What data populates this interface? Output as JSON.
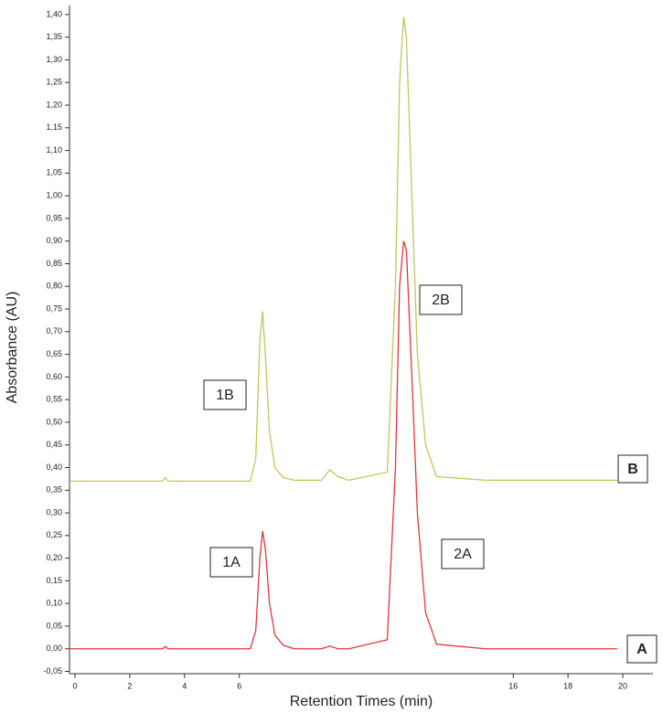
{
  "chart_data": {
    "type": "line",
    "xlabel": "Retention Times (min)",
    "ylabel": "Absorbance (AU)",
    "x": [
      -0.2,
      3.2,
      3.3,
      3.4,
      6.4,
      6.6,
      6.75,
      6.85,
      6.95,
      7.1,
      7.3,
      7.6,
      8.0,
      9.0,
      9.3,
      9.6,
      10.0,
      11.4,
      11.7,
      11.85,
      12.0,
      12.1,
      12.3,
      12.5,
      12.8,
      13.2,
      15.0,
      19.8
    ],
    "series": [
      {
        "name": "B",
        "color": "#c5c55a",
        "values": [
          0.37,
          0.37,
          0.378,
          0.37,
          0.37,
          0.42,
          0.68,
          0.745,
          0.65,
          0.48,
          0.4,
          0.378,
          0.372,
          0.372,
          0.395,
          0.38,
          0.372,
          0.39,
          0.8,
          1.25,
          1.395,
          1.35,
          1.0,
          0.65,
          0.45,
          0.38,
          0.372,
          0.372
        ]
      },
      {
        "name": "A",
        "color": "#e8343a",
        "values": [
          0,
          0,
          0.005,
          0,
          0,
          0.04,
          0.2,
          0.26,
          0.22,
          0.1,
          0.03,
          0.008,
          0,
          0,
          0.006,
          0,
          0,
          0.02,
          0.4,
          0.8,
          0.9,
          0.88,
          0.6,
          0.3,
          0.08,
          0.01,
          0,
          0
        ]
      }
    ],
    "annotations": [
      "1B",
      "2B",
      "1A",
      "2A"
    ],
    "xlim": [
      -0.2,
      21.1
    ],
    "ylim": [
      -0.055,
      1.42
    ],
    "xticks": [
      0,
      2,
      4,
      6,
      16,
      18,
      20
    ],
    "yticks": [
      {
        "value": -0.05,
        "label": "-0,05"
      },
      {
        "value": 0,
        "label": "0,00"
      },
      {
        "value": 0.05,
        "label": "0,05"
      },
      {
        "value": 0.1,
        "label": "0,10"
      },
      {
        "value": 0.15,
        "label": "0,15"
      },
      {
        "value": 0.2,
        "label": "0,20"
      },
      {
        "value": 0.25,
        "label": "0,25"
      },
      {
        "value": 0.3,
        "label": "0,30"
      },
      {
        "value": 0.35,
        "label": "0,35"
      },
      {
        "value": 0.4,
        "label": "0,40"
      },
      {
        "value": 0.45,
        "label": "0,45"
      },
      {
        "value": 0.5,
        "label": "0,50"
      },
      {
        "value": 0.55,
        "label": "0,55"
      },
      {
        "value": 0.6,
        "label": "0,60"
      },
      {
        "value": 0.65,
        "label": "0,65"
      },
      {
        "value": 0.7,
        "label": "0,70"
      },
      {
        "value": 0.75,
        "label": "0,75"
      },
      {
        "value": 0.8,
        "label": "0,80"
      },
      {
        "value": 0.85,
        "label": "0,85"
      },
      {
        "value": 0.9,
        "label": "0,90"
      },
      {
        "value": 0.95,
        "label": "0,95"
      },
      {
        "value": 1.0,
        "label": "1,00"
      },
      {
        "value": 1.05,
        "label": "1,05"
      },
      {
        "value": 1.1,
        "label": "1,10"
      },
      {
        "value": 1.15,
        "label": "1,15"
      },
      {
        "value": 1.2,
        "label": "1,20"
      },
      {
        "value": 1.25,
        "label": "1,25"
      },
      {
        "value": 1.3,
        "label": "1,30"
      },
      {
        "value": 1.35,
        "label": "1,35"
      },
      {
        "value": 1.4,
        "label": "1,40"
      }
    ],
    "grid": false
  }
}
